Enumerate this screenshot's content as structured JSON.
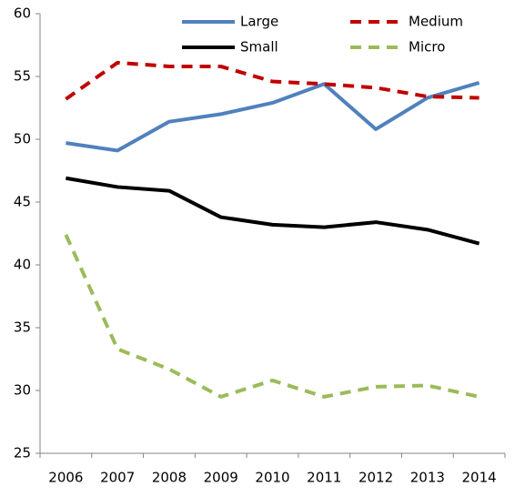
{
  "chart_data": {
    "type": "line",
    "categories": [
      "2006",
      "2007",
      "2008",
      "2009",
      "2010",
      "2011",
      "2012",
      "2013",
      "2014"
    ],
    "series": [
      {
        "name": "Large",
        "color": "#4f81bd",
        "line_style": "solid",
        "values": [
          49.7,
          49.1,
          51.4,
          52.0,
          52.9,
          54.4,
          50.8,
          53.3,
          54.5
        ]
      },
      {
        "name": "Medium",
        "color": "#c00000",
        "line_style": "dashed",
        "values": [
          53.2,
          56.1,
          55.8,
          55.8,
          54.6,
          54.4,
          54.1,
          53.4,
          53.3
        ]
      },
      {
        "name": "Small",
        "color": "#000000",
        "line_style": "solid",
        "values": [
          46.9,
          46.2,
          45.9,
          43.8,
          43.2,
          43.0,
          43.4,
          42.8,
          41.7
        ]
      },
      {
        "name": "Micro",
        "color": "#9bbb59",
        "line_style": "dashed",
        "values": [
          42.4,
          33.3,
          31.7,
          29.5,
          30.8,
          29.5,
          30.3,
          30.4,
          29.5
        ]
      }
    ],
    "ylim": [
      25,
      60
    ],
    "yticks": [
      25,
      30,
      35,
      40,
      45,
      50,
      55,
      60
    ],
    "grid": false,
    "legend": "top"
  }
}
